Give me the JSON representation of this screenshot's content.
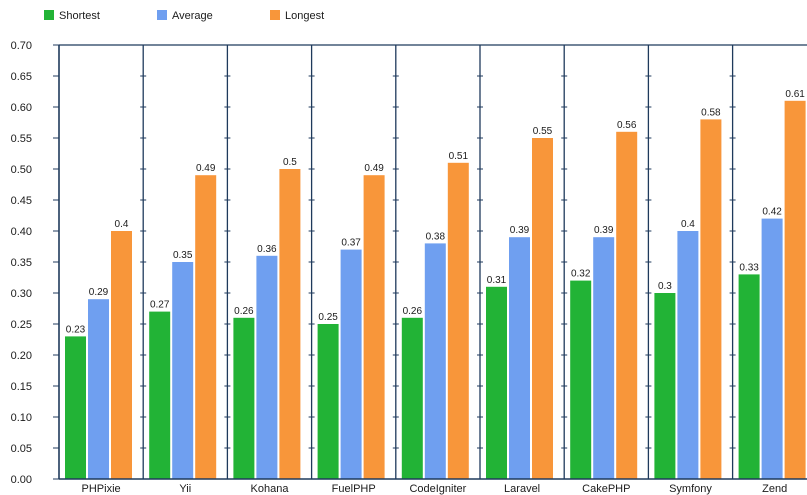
{
  "chart_data": {
    "type": "bar",
    "categories": [
      "PHPixie",
      "Yii",
      "Kohana",
      "FuelPHP",
      "CodeIgniter",
      "Laravel",
      "CakePHP",
      "Symfony",
      "Zend"
    ],
    "series": [
      {
        "name": "Shortest",
        "color": "#22b336",
        "values": [
          0.23,
          0.27,
          0.26,
          0.25,
          0.26,
          0.31,
          0.32,
          0.3,
          0.33
        ]
      },
      {
        "name": "Average",
        "color": "#6f9ff0",
        "values": [
          0.29,
          0.35,
          0.36,
          0.37,
          0.38,
          0.39,
          0.39,
          0.4,
          0.42
        ]
      },
      {
        "name": "Longest",
        "color": "#f8963a",
        "values": [
          0.4,
          0.49,
          0.5,
          0.49,
          0.51,
          0.55,
          0.56,
          0.58,
          0.61
        ]
      }
    ],
    "ylim": [
      0,
      0.7
    ],
    "ytick_labels": [
      "0.00",
      "0.05",
      "0.10",
      "0.15",
      "0.20",
      "0.25",
      "0.30",
      "0.35",
      "0.40",
      "0.45",
      "0.50",
      "0.55",
      "0.60",
      "0.65",
      "0.70"
    ],
    "grid": true,
    "data_labels": true,
    "legend_position": "top-left"
  },
  "colors": {
    "grid": "#1f3a5c",
    "background": "#ffffff"
  }
}
